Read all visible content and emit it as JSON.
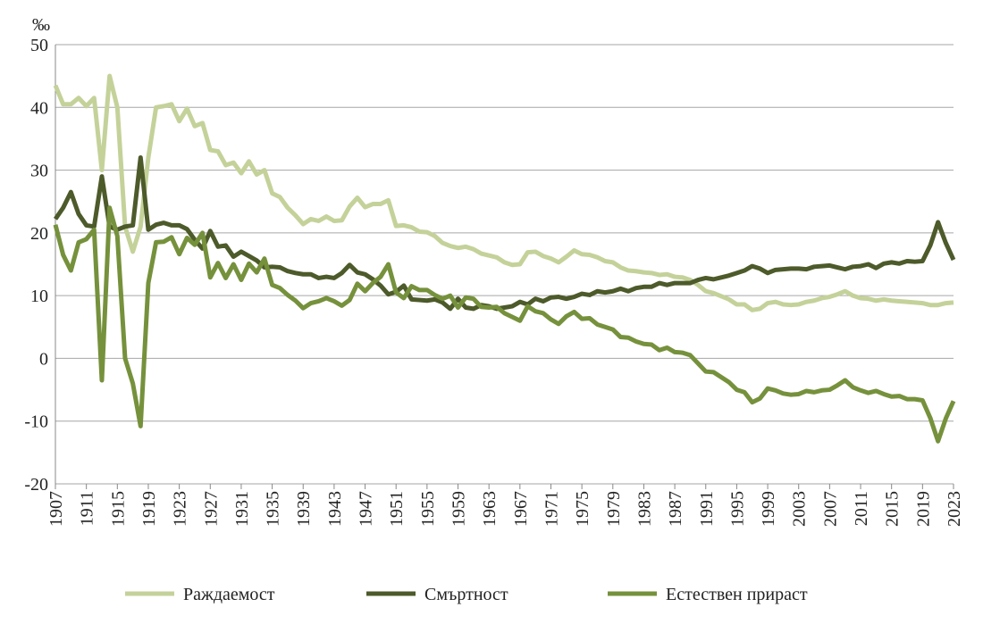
{
  "chart_data": {
    "type": "line",
    "y_label": "‰",
    "x": [
      1907,
      1908,
      1909,
      1910,
      1911,
      1912,
      1913,
      1914,
      1915,
      1916,
      1917,
      1918,
      1919,
      1920,
      1921,
      1922,
      1923,
      1924,
      1925,
      1926,
      1927,
      1928,
      1929,
      1930,
      1931,
      1932,
      1933,
      1934,
      1935,
      1936,
      1937,
      1938,
      1939,
      1940,
      1941,
      1942,
      1943,
      1944,
      1945,
      1946,
      1947,
      1948,
      1949,
      1950,
      1951,
      1952,
      1953,
      1954,
      1955,
      1956,
      1957,
      1958,
      1959,
      1960,
      1961,
      1962,
      1963,
      1964,
      1965,
      1966,
      1967,
      1968,
      1969,
      1970,
      1971,
      1972,
      1973,
      1974,
      1975,
      1976,
      1977,
      1978,
      1979,
      1980,
      1981,
      1982,
      1983,
      1984,
      1985,
      1986,
      1987,
      1988,
      1989,
      1990,
      1991,
      1992,
      1993,
      1994,
      1995,
      1996,
      1997,
      1998,
      1999,
      2000,
      2001,
      2002,
      2003,
      2004,
      2005,
      2006,
      2007,
      2008,
      2009,
      2010,
      2011,
      2012,
      2013,
      2014,
      2015,
      2016,
      2017,
      2018,
      2019,
      2020,
      2021,
      2022,
      2023
    ],
    "series": [
      {
        "name": "Раждаемост",
        "color": "#c4d29a",
        "values": [
          43.5,
          40.5,
          40.5,
          41.5,
          40.2,
          41.5,
          30,
          45,
          40,
          21,
          17,
          21,
          32,
          40,
          40.2,
          40.5,
          37.8,
          39.8,
          37,
          37.5,
          33.2,
          33,
          30.8,
          31.2,
          29.5,
          31.4,
          29.3,
          30,
          26.3,
          25.7,
          24,
          22.8,
          21.4,
          22.2,
          21.9,
          22.6,
          21.9,
          22,
          24.2,
          25.6,
          24.1,
          24.6,
          24.6,
          25.2,
          21.1,
          21.2,
          20.9,
          20.2,
          20.1,
          19.5,
          18.4,
          17.9,
          17.6,
          17.8,
          17.4,
          16.7,
          16.4,
          16.1,
          15.3,
          14.9,
          15.0,
          16.9,
          17.0,
          16.3,
          15.9,
          15.3,
          16.2,
          17.2,
          16.6,
          16.5,
          16.1,
          15.5,
          15.3,
          14.5,
          14.0,
          13.9,
          13.7,
          13.6,
          13.3,
          13.4,
          13.0,
          12.9,
          12.5,
          11.7,
          10.7,
          10.4,
          9.9,
          9.4,
          8.6,
          8.6,
          7.7,
          7.9,
          8.8,
          9.0,
          8.6,
          8.5,
          8.6,
          9.0,
          9.2,
          9.6,
          9.8,
          10.2,
          10.7,
          10.0,
          9.6,
          9.5,
          9.2,
          9.4,
          9.2,
          9.1,
          9.0,
          8.9,
          8.8,
          8.5,
          8.5,
          8.8,
          8.9
        ]
      },
      {
        "name": "Смъртност",
        "color": "#4d5a2a",
        "values": [
          22.2,
          24,
          26.5,
          23,
          21.2,
          21,
          29,
          21,
          20.5,
          21,
          21.2,
          32,
          20.5,
          21.3,
          21.6,
          21.2,
          21.2,
          20.6,
          18.9,
          17.5,
          20.3,
          17.8,
          18,
          16.2,
          17,
          16.3,
          15.6,
          14.5,
          14.6,
          14.5,
          13.9,
          13.6,
          13.4,
          13.4,
          12.8,
          13.0,
          12.8,
          13.6,
          14.9,
          13.7,
          13.4,
          12.6,
          11.6,
          10.2,
          10.6,
          11.6,
          9.4,
          9.3,
          9.2,
          9.4,
          8.9,
          7.9,
          9.5,
          8.1,
          7.9,
          8.5,
          8.3,
          7.9,
          8.1,
          8.3,
          9.0,
          8.6,
          9.5,
          9.1,
          9.7,
          9.8,
          9.5,
          9.8,
          10.3,
          10.1,
          10.7,
          10.5,
          10.7,
          11.1,
          10.7,
          11.2,
          11.4,
          11.4,
          12.0,
          11.7,
          12.0,
          12.0,
          12.0,
          12.5,
          12.8,
          12.6,
          12.9,
          13.2,
          13.6,
          14.0,
          14.7,
          14.3,
          13.6,
          14.1,
          14.2,
          14.3,
          14.3,
          14.2,
          14.6,
          14.7,
          14.8,
          14.5,
          14.2,
          14.6,
          14.7,
          15.0,
          14.4,
          15.1,
          15.3,
          15.1,
          15.5,
          15.4,
          15.5,
          18.0,
          21.7,
          18.4,
          15.7
        ]
      },
      {
        "name": "Естествен прираст",
        "color": "#76913c",
        "values": [
          21.3,
          16.5,
          14,
          18.5,
          19,
          20.5,
          -3.5,
          24,
          19.5,
          0,
          -4,
          -10.8,
          12,
          18.5,
          18.6,
          19.3,
          16.6,
          19.2,
          18.1,
          20,
          12.9,
          15.2,
          12.8,
          15,
          12.5,
          15.1,
          13.7,
          15.9,
          11.7,
          11.2,
          10.1,
          9.2,
          8.0,
          8.8,
          9.1,
          9.6,
          9.1,
          8.4,
          9.3,
          11.9,
          10.7,
          12.0,
          13.0,
          15.0,
          10.5,
          9.6,
          11.5,
          10.9,
          10.9,
          10.1,
          9.5,
          10.0,
          8.1,
          9.7,
          9.5,
          8.2,
          8.1,
          8.2,
          7.2,
          6.6,
          6.0,
          8.3,
          7.5,
          7.2,
          6.2,
          5.5,
          6.7,
          7.4,
          6.3,
          6.4,
          5.4,
          5.0,
          4.6,
          3.4,
          3.3,
          2.7,
          2.3,
          2.2,
          1.3,
          1.7,
          1.0,
          0.9,
          0.5,
          -0.8,
          -2.1,
          -2.2,
          -3.0,
          -3.8,
          -5.0,
          -5.4,
          -7.0,
          -6.4,
          -4.8,
          -5.1,
          -5.6,
          -5.8,
          -5.7,
          -5.2,
          -5.4,
          -5.1,
          -5.0,
          -4.3,
          -3.5,
          -4.6,
          -5.1,
          -5.5,
          -5.2,
          -5.7,
          -6.1,
          -6.0,
          -6.5,
          -6.5,
          -6.7,
          -9.5,
          -13.2,
          -9.6,
          -6.8
        ]
      }
    ],
    "xlim": [
      1907,
      2023
    ],
    "xticks": [
      1907,
      1911,
      1915,
      1919,
      1923,
      1927,
      1931,
      1935,
      1939,
      1943,
      1947,
      1951,
      1955,
      1959,
      1963,
      1967,
      1971,
      1975,
      1979,
      1983,
      1987,
      1991,
      1995,
      1999,
      2003,
      2007,
      2011,
      2015,
      2019,
      2023
    ],
    "ylim": [
      -20,
      50
    ],
    "yticks": [
      -20,
      -10,
      0,
      10,
      20,
      30,
      40,
      50
    ],
    "grid": true,
    "legend": "bottom"
  }
}
